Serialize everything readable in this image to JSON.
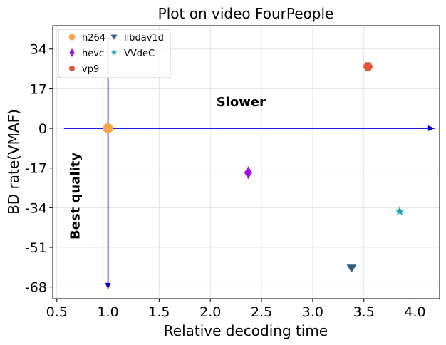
{
  "chart_data": {
    "type": "scatter",
    "title": "Plot on video FourPeople",
    "xlabel": "Relative decoding time",
    "ylabel": "BD rate(VMAF)",
    "xlim": [
      0.46,
      4.24
    ],
    "ylim": [
      -73,
      44
    ],
    "xticks": [
      0.5,
      1.0,
      1.5,
      2.0,
      2.5,
      3.0,
      3.5,
      4.0
    ],
    "xtick_labels": [
      "0.5",
      "1.0",
      "1.5",
      "2.0",
      "2.5",
      "3.0",
      "3.5",
      "4.0"
    ],
    "yticks": [
      34,
      17,
      0,
      -17,
      -34,
      -51,
      -68
    ],
    "ytick_labels": [
      "34",
      "17",
      "0",
      "-17",
      "-34",
      "-51",
      "-68"
    ],
    "grid": true,
    "legend_position": "top-left",
    "series": [
      {
        "name": "h264",
        "marker": "circle",
        "color": "#f5a547",
        "x": 1.0,
        "y": 0
      },
      {
        "name": "hevc",
        "marker": "thin-diamond",
        "color": "#9b0fe8",
        "x": 2.37,
        "y": -19
      },
      {
        "name": "vp9",
        "marker": "hexagon",
        "color": "#e8553e",
        "x": 3.54,
        "y": 26.5
      },
      {
        "name": "libdav1d",
        "marker": "triangle-down",
        "color": "#2f5e83",
        "x": 3.38,
        "y": -60
      },
      {
        "name": "VVdeC",
        "marker": "star",
        "color": "#17a8b0",
        "x": 3.85,
        "y": -35.5
      }
    ],
    "annotations": [
      {
        "text": "Slower",
        "x": 2.3,
        "y": 9.5,
        "rotation": 0
      },
      {
        "text": "Best quality",
        "x": 0.72,
        "y": -29,
        "rotation": -90
      }
    ],
    "arrows": [
      {
        "color": "#0000dd",
        "from": [
          0.57,
          0
        ],
        "to": [
          4.19,
          0
        ]
      },
      {
        "color": "#0000dd",
        "from": [
          1.0,
          39
        ],
        "to": [
          1.0,
          -69
        ]
      }
    ]
  }
}
